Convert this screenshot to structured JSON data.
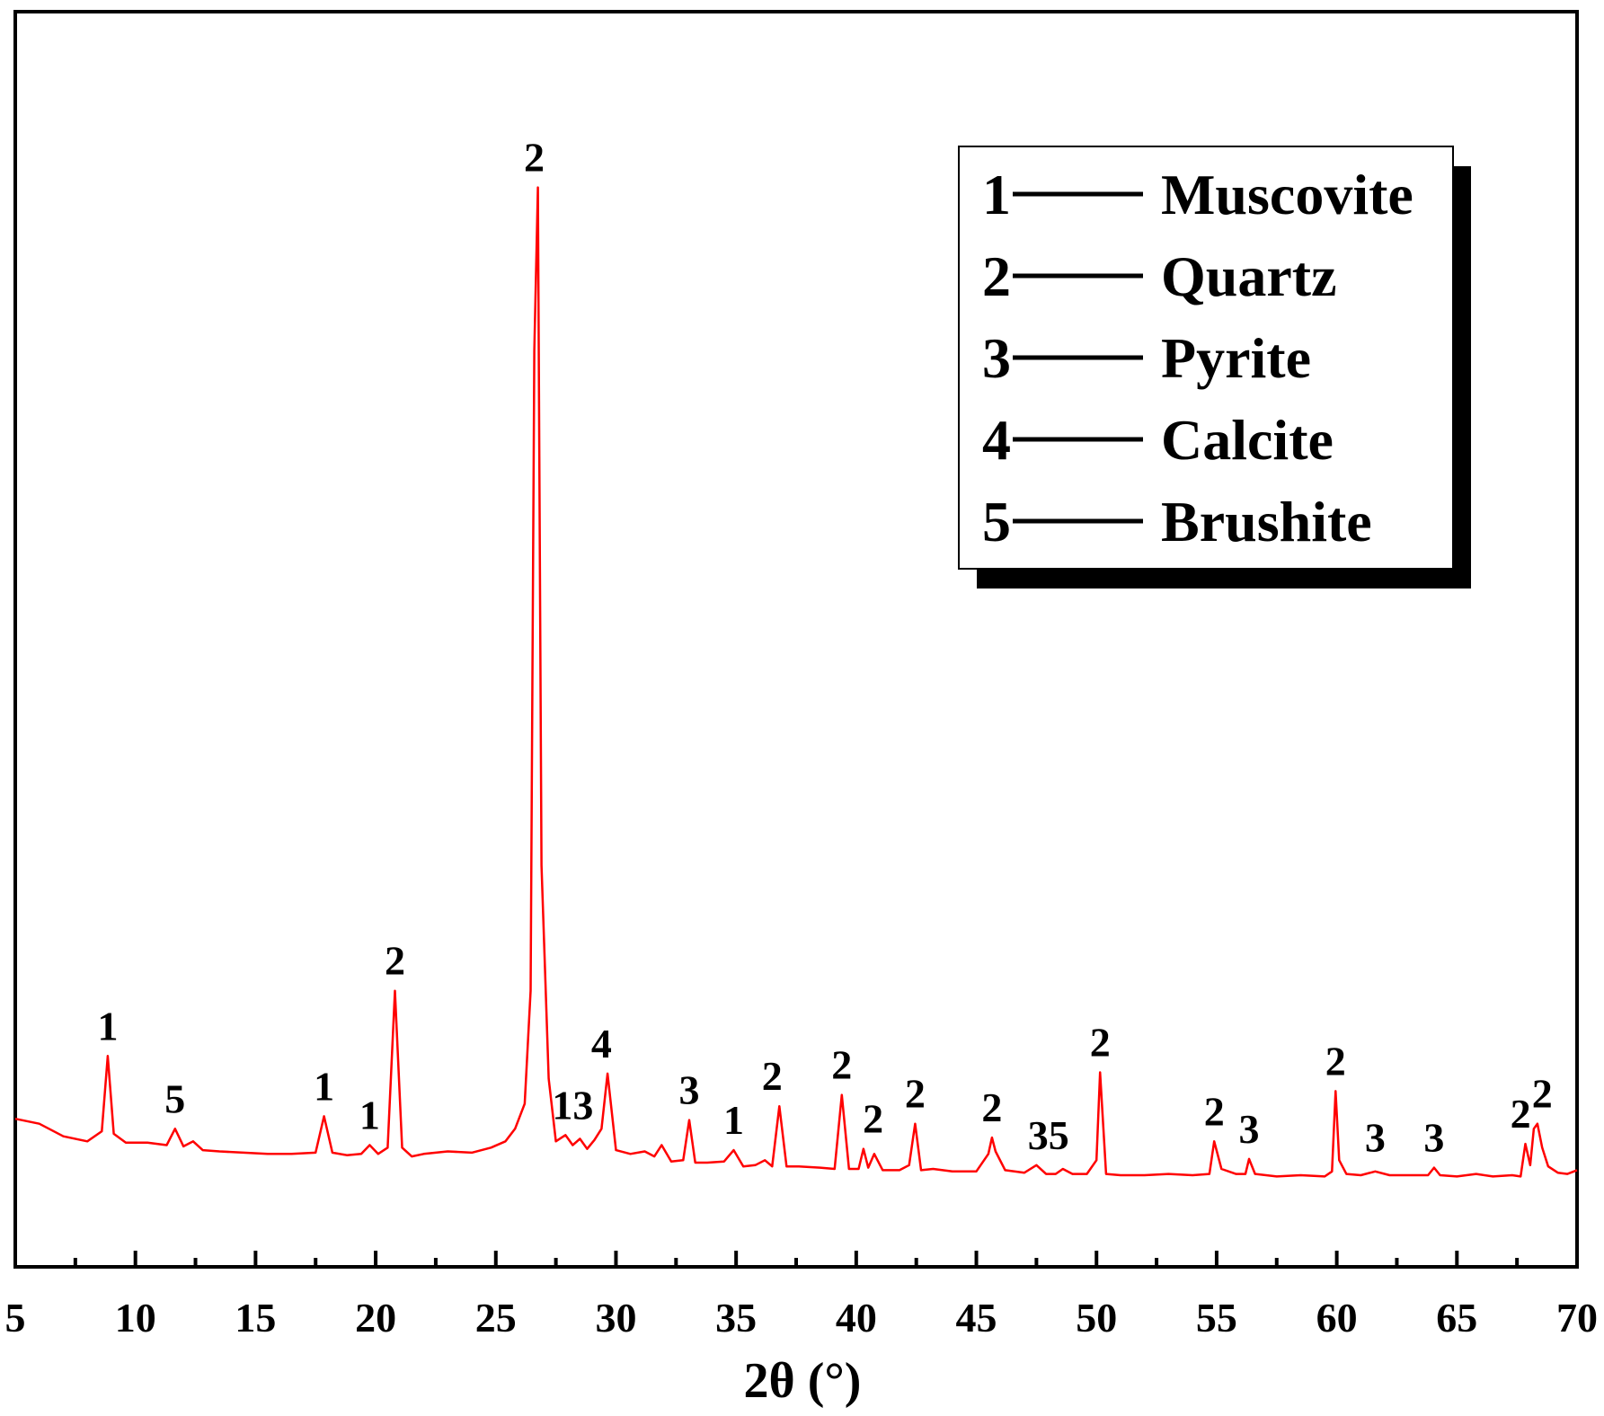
{
  "chart_data": {
    "type": "line",
    "title": "",
    "xlabel": "2θ (°)",
    "ylabel": "",
    "xlim": [
      5,
      70
    ],
    "ylim": [
      0,
      1
    ],
    "grid": false,
    "x_ticks": [
      5,
      10,
      15,
      20,
      25,
      30,
      35,
      40,
      45,
      50,
      55,
      60,
      65,
      70
    ],
    "x_tick_labels": [
      "5",
      "10",
      "15",
      "20",
      "25",
      "30",
      "35",
      "40",
      "45",
      "50",
      "55",
      "60",
      "65",
      "70"
    ],
    "series": [
      {
        "color": "#ff0000",
        "x": [
          5.0,
          6.0,
          7.0,
          8.0,
          8.6,
          8.85,
          9.1,
          9.6,
          10.5,
          11.3,
          11.65,
          12.0,
          12.4,
          12.8,
          13.5,
          14.5,
          15.5,
          16.5,
          17.5,
          17.85,
          18.2,
          18.8,
          19.4,
          19.75,
          20.1,
          20.5,
          20.8,
          21.1,
          21.5,
          22.0,
          23.0,
          24.0,
          24.8,
          25.4,
          25.8,
          26.2,
          26.45,
          26.6,
          26.75,
          26.9,
          27.2,
          27.5,
          27.9,
          28.2,
          28.5,
          28.8,
          29.1,
          29.4,
          29.65,
          30.0,
          30.6,
          31.2,
          31.6,
          31.9,
          32.3,
          32.8,
          33.05,
          33.3,
          33.8,
          34.5,
          34.9,
          35.3,
          35.8,
          36.2,
          36.5,
          36.8,
          37.1,
          37.6,
          38.5,
          39.1,
          39.4,
          39.7,
          40.1,
          40.3,
          40.5,
          40.75,
          41.1,
          41.8,
          42.2,
          42.45,
          42.7,
          43.2,
          44.0,
          45.0,
          45.5,
          45.65,
          45.8,
          46.2,
          47.0,
          47.5,
          47.9,
          48.3,
          48.6,
          49.0,
          49.6,
          50.0,
          50.15,
          50.4,
          51.0,
          52.0,
          53.0,
          54.0,
          54.7,
          54.9,
          55.2,
          55.8,
          56.2,
          56.35,
          56.6,
          57.5,
          58.5,
          59.5,
          59.8,
          59.95,
          60.1,
          60.4,
          61.0,
          61.6,
          62.2,
          63.0,
          63.8,
          64.05,
          64.3,
          65.0,
          65.8,
          66.5,
          67.3,
          67.65,
          67.85,
          68.05,
          68.2,
          68.35,
          68.55,
          68.8,
          69.2,
          69.6,
          70.0
        ],
        "y": [
          0.118,
          0.114,
          0.104,
          0.1,
          0.108,
          0.168,
          0.106,
          0.099,
          0.099,
          0.097,
          0.11,
          0.096,
          0.1,
          0.093,
          0.092,
          0.091,
          0.09,
          0.09,
          0.091,
          0.12,
          0.091,
          0.089,
          0.09,
          0.097,
          0.09,
          0.095,
          0.22,
          0.095,
          0.088,
          0.09,
          0.092,
          0.091,
          0.095,
          0.1,
          0.11,
          0.13,
          0.22,
          0.73,
          0.86,
          0.32,
          0.15,
          0.1,
          0.105,
          0.097,
          0.102,
          0.094,
          0.101,
          0.11,
          0.154,
          0.093,
          0.09,
          0.092,
          0.088,
          0.097,
          0.084,
          0.085,
          0.117,
          0.083,
          0.083,
          0.084,
          0.093,
          0.08,
          0.081,
          0.085,
          0.08,
          0.128,
          0.08,
          0.08,
          0.079,
          0.078,
          0.137,
          0.078,
          0.078,
          0.094,
          0.079,
          0.09,
          0.077,
          0.077,
          0.081,
          0.114,
          0.077,
          0.078,
          0.076,
          0.076,
          0.09,
          0.103,
          0.092,
          0.077,
          0.075,
          0.081,
          0.074,
          0.074,
          0.078,
          0.074,
          0.074,
          0.085,
          0.155,
          0.074,
          0.073,
          0.073,
          0.074,
          0.073,
          0.074,
          0.1,
          0.078,
          0.074,
          0.074,
          0.086,
          0.074,
          0.072,
          0.073,
          0.072,
          0.076,
          0.14,
          0.085,
          0.074,
          0.073,
          0.076,
          0.073,
          0.073,
          0.073,
          0.079,
          0.073,
          0.072,
          0.074,
          0.072,
          0.073,
          0.072,
          0.098,
          0.081,
          0.11,
          0.114,
          0.095,
          0.08,
          0.075,
          0.074,
          0.077
        ]
      }
    ],
    "peak_labels": [
      {
        "text": "1",
        "x": 8.85,
        "y": 0.168
      },
      {
        "text": "5",
        "x": 11.65,
        "y": 0.11
      },
      {
        "text": "1",
        "x": 17.85,
        "y": 0.12
      },
      {
        "text": "1",
        "x": 19.75,
        "y": 0.097
      },
      {
        "text": "2",
        "x": 20.8,
        "y": 0.22
      },
      {
        "text": "2",
        "x": 26.6,
        "y": 0.86
      },
      {
        "text": "13",
        "x": 28.2,
        "y": 0.105
      },
      {
        "text": "4",
        "x": 29.4,
        "y": 0.154
      },
      {
        "text": "3",
        "x": 33.05,
        "y": 0.117
      },
      {
        "text": "1",
        "x": 34.9,
        "y": 0.093
      },
      {
        "text": "2",
        "x": 36.5,
        "y": 0.128
      },
      {
        "text": "2",
        "x": 39.4,
        "y": 0.137
      },
      {
        "text": "2",
        "x": 40.7,
        "y": 0.094
      },
      {
        "text": "2",
        "x": 42.45,
        "y": 0.114
      },
      {
        "text": "2",
        "x": 45.65,
        "y": 0.103
      },
      {
        "text": "35",
        "x": 48.0,
        "y": 0.081
      },
      {
        "text": "2",
        "x": 50.15,
        "y": 0.155
      },
      {
        "text": "2",
        "x": 54.9,
        "y": 0.1
      },
      {
        "text": "3",
        "x": 56.35,
        "y": 0.086
      },
      {
        "text": "2",
        "x": 59.95,
        "y": 0.14
      },
      {
        "text": "3",
        "x": 61.6,
        "y": 0.079
      },
      {
        "text": "3",
        "x": 64.05,
        "y": 0.079
      },
      {
        "text": "2",
        "x": 67.65,
        "y": 0.098
      },
      {
        "text": "2",
        "x": 68.55,
        "y": 0.114
      }
    ],
    "legend": {
      "position": "top-right",
      "entries": [
        {
          "number": "1",
          "name": "Muscovite"
        },
        {
          "number": "2",
          "name": "Quartz"
        },
        {
          "number": "3",
          "name": "Pyrite"
        },
        {
          "number": "4",
          "name": "Calcite"
        },
        {
          "number": "5",
          "name": "Brushite"
        }
      ]
    }
  }
}
